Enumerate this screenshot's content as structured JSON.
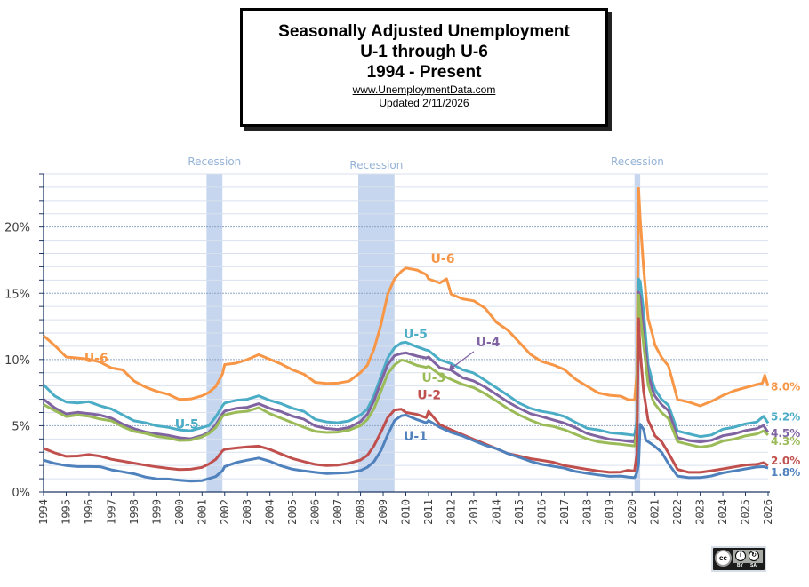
{
  "title_box": {
    "line1": "Seasonally Adjusted Unemployment",
    "line2": "U-1 through U-6",
    "line3": "1994 - Present",
    "website": "www.UnemploymentData.com",
    "updated": "Updated  2/11/2026"
  },
  "license_badge": {
    "icon": "cc-by-sa-icon",
    "cc_text": "cc",
    "by_text": "BY",
    "sa_text": "SA"
  },
  "chart_data": {
    "type": "line",
    "title": "Seasonally Adjusted Unemployment U-1 through U-6 1994 - Present",
    "xlabel": "",
    "ylabel": "",
    "xlim": [
      1994,
      2026
    ],
    "ylim": [
      0,
      24
    ],
    "x_ticks": [
      "1994",
      "1995",
      "1996",
      "1997",
      "1998",
      "1999",
      "2000",
      "2001",
      "2002",
      "2003",
      "2004",
      "2005",
      "2006",
      "2007",
      "2008",
      "2009",
      "2010",
      "2011",
      "2012",
      "2013",
      "2014",
      "2015",
      "2016",
      "2017",
      "2018",
      "2019",
      "2020",
      "2021",
      "2022",
      "2023",
      "2024",
      "2025",
      "2026"
    ],
    "y_ticks": [
      {
        "value": 0,
        "label": "0%"
      },
      {
        "value": 5,
        "label": "5%"
      },
      {
        "value": 10,
        "label": "10%"
      },
      {
        "value": 15,
        "label": "15%"
      },
      {
        "value": 20,
        "label": "20%"
      }
    ],
    "grid": true,
    "recessions": [
      {
        "label": "Recession",
        "start": 2001.2,
        "end": 2001.9
      },
      {
        "label": "Recession",
        "start": 2007.9,
        "end": 2009.5
      },
      {
        "label": "Recession",
        "start": 2020.1,
        "end": 2020.35
      }
    ],
    "series": [
      {
        "name": "U-6",
        "color": "#f79646",
        "end_label": "8.0%",
        "inline_labels": [
          {
            "text": "U-6",
            "x": 2011.1,
            "y": 17.3
          },
          {
            "text": "U-6",
            "x": 1995.8,
            "y": 9.8
          }
        ],
        "x": [
          1994,
          1994.5,
          1995,
          1995.5,
          1996,
          1996.5,
          1997,
          1997.5,
          1998,
          1998.5,
          1999,
          1999.5,
          2000,
          2000.5,
          2001,
          2001.3,
          2001.6,
          2001.9,
          2002,
          2002.5,
          2003,
          2003.5,
          2004,
          2004.5,
          2005,
          2005.5,
          2006,
          2006.5,
          2007,
          2007.5,
          2008,
          2008.3,
          2008.6,
          2008.9,
          2009.2,
          2009.5,
          2009.8,
          2010,
          2010.5,
          2010.9,
          2011,
          2011.5,
          2011.8,
          2012,
          2012.5,
          2013,
          2013.5,
          2014,
          2014.5,
          2015,
          2015.5,
          2016,
          2016.5,
          2017,
          2017.5,
          2018,
          2018.5,
          2019,
          2019.5,
          2019.8,
          2020.1,
          2020.2,
          2020.28,
          2020.35,
          2020.5,
          2020.7,
          2020.9,
          2021,
          2021.3,
          2021.6,
          2022,
          2022.5,
          2023,
          2023.5,
          2024,
          2024.5,
          2025,
          2025.5,
          2025.75,
          2025.85,
          2026
        ],
        "values": [
          11.8,
          11.0,
          10.1,
          10.0,
          9.9,
          9.7,
          9.3,
          9.2,
          8.4,
          8.0,
          7.7,
          7.5,
          7.1,
          7.1,
          7.3,
          7.5,
          7.9,
          8.8,
          9.5,
          9.6,
          9.9,
          10.3,
          10.0,
          9.7,
          9.3,
          9.0,
          8.4,
          8.3,
          8.3,
          8.4,
          9.0,
          9.5,
          10.7,
          12.5,
          14.8,
          16.0,
          16.6,
          16.9,
          16.8,
          16.5,
          16.2,
          15.9,
          16.2,
          15.0,
          14.6,
          14.4,
          13.8,
          12.7,
          12.1,
          11.2,
          10.3,
          9.8,
          9.6,
          9.3,
          8.6,
          8.1,
          7.6,
          7.4,
          7.3,
          7.0,
          6.9,
          8.8,
          22.8,
          20.5,
          16.8,
          13.0,
          11.8,
          11.1,
          10.2,
          9.6,
          7.1,
          6.9,
          6.6,
          6.9,
          7.3,
          7.6,
          7.8,
          8.0,
          8.1,
          8.7,
          8.0
        ]
      },
      {
        "name": "U-5",
        "color": "#4bacc6",
        "end_label": "5.2%",
        "inline_labels": [
          {
            "text": "U-5",
            "x": 2009.9,
            "y": 11.6
          },
          {
            "text": "U-5",
            "x": 1999.8,
            "y": 4.8
          }
        ],
        "x": [
          1994,
          1994.5,
          1995,
          1995.5,
          1996,
          1996.5,
          1997,
          1997.5,
          1998,
          1998.5,
          1999,
          1999.5,
          2000,
          2000.5,
          2001,
          2001.3,
          2001.6,
          2001.9,
          2002,
          2002.5,
          2003,
          2003.5,
          2004,
          2004.5,
          2005,
          2005.5,
          2006,
          2006.5,
          2007,
          2007.5,
          2008,
          2008.3,
          2008.6,
          2008.9,
          2009.2,
          2009.5,
          2009.8,
          2010,
          2010.5,
          2010.9,
          2011,
          2011.5,
          2012,
          2012.5,
          2013,
          2013.5,
          2014,
          2014.5,
          2015,
          2015.5,
          2016,
          2016.5,
          2017,
          2017.5,
          2018,
          2018.5,
          2019,
          2019.5,
          2019.8,
          2020.1,
          2020.2,
          2020.28,
          2020.35,
          2020.5,
          2020.7,
          2020.9,
          2021,
          2021.3,
          2021.6,
          2022,
          2022.5,
          2023,
          2023.5,
          2024,
          2024.5,
          2025,
          2025.5,
          2025.8,
          2026
        ],
        "values": [
          8.1,
          7.2,
          6.7,
          6.6,
          6.7,
          6.4,
          6.2,
          5.8,
          5.4,
          5.3,
          5.1,
          5.0,
          4.8,
          4.7,
          4.9,
          5.0,
          5.6,
          6.4,
          6.6,
          6.8,
          6.9,
          7.2,
          6.9,
          6.7,
          6.4,
          6.2,
          5.6,
          5.4,
          5.3,
          5.4,
          5.8,
          6.2,
          7.2,
          8.6,
          10.0,
          10.8,
          11.2,
          11.3,
          11.0,
          10.8,
          10.8,
          10.1,
          9.8,
          9.3,
          9.0,
          8.4,
          7.8,
          7.2,
          6.6,
          6.2,
          6.0,
          5.9,
          5.7,
          5.3,
          4.9,
          4.8,
          4.6,
          4.5,
          4.4,
          4.3,
          5.3,
          16.0,
          15.8,
          13.5,
          9.5,
          8.2,
          7.7,
          7.0,
          6.6,
          4.7,
          4.5,
          4.3,
          4.4,
          4.8,
          4.9,
          5.1,
          5.2,
          5.6,
          5.2
        ]
      },
      {
        "name": "U-4",
        "color": "#8064a2",
        "end_label": "4.5%",
        "inline_labels": [
          {
            "text": "U-4",
            "x": 2013.1,
            "y": 11.0
          }
        ],
        "x": [
          1994,
          1994.5,
          1995,
          1995.5,
          1996,
          1996.5,
          1997,
          1997.5,
          1998,
          1998.5,
          1999,
          1999.5,
          2000,
          2000.5,
          2001,
          2001.3,
          2001.6,
          2001.9,
          2002,
          2002.5,
          2003,
          2003.5,
          2004,
          2004.5,
          2005,
          2005.5,
          2006,
          2006.5,
          2007,
          2007.5,
          2008,
          2008.3,
          2008.6,
          2008.9,
          2009.2,
          2009.5,
          2009.8,
          2010,
          2010.5,
          2010.9,
          2011,
          2011.5,
          2012,
          2012.5,
          2013,
          2013.5,
          2014,
          2014.5,
          2015,
          2015.5,
          2016,
          2016.5,
          2017,
          2017.5,
          2018,
          2018.5,
          2019,
          2019.5,
          2019.8,
          2020.1,
          2020.2,
          2020.28,
          2020.35,
          2020.5,
          2020.7,
          2020.9,
          2021,
          2021.3,
          2021.6,
          2022,
          2022.5,
          2023,
          2023.5,
          2024,
          2024.5,
          2025,
          2025.5,
          2025.8,
          2026
        ],
        "values": [
          7.0,
          6.3,
          5.8,
          5.9,
          5.8,
          5.7,
          5.5,
          5.1,
          4.8,
          4.6,
          4.5,
          4.4,
          4.2,
          4.1,
          4.3,
          4.5,
          5.0,
          5.8,
          6.0,
          6.2,
          6.3,
          6.6,
          6.3,
          6.1,
          5.8,
          5.6,
          5.1,
          4.9,
          4.8,
          4.9,
          5.3,
          5.8,
          6.8,
          8.2,
          9.5,
          10.2,
          10.4,
          10.5,
          10.3,
          10.2,
          10.3,
          9.5,
          9.3,
          8.7,
          8.4,
          7.9,
          7.3,
          6.7,
          6.2,
          5.8,
          5.6,
          5.4,
          5.2,
          4.9,
          4.5,
          4.3,
          4.1,
          4.0,
          3.9,
          3.8,
          4.8,
          15.0,
          14.6,
          12.0,
          8.8,
          7.6,
          7.2,
          6.6,
          6.2,
          4.2,
          4.0,
          3.9,
          4.0,
          4.3,
          4.4,
          4.6,
          4.7,
          4.9,
          4.5
        ]
      },
      {
        "name": "U-3",
        "color": "#9bbb59",
        "end_label": "4.3%",
        "inline_labels": [
          {
            "text": "U-3",
            "x": 2010.7,
            "y": 8.3
          }
        ],
        "x": [
          1994,
          1994.5,
          1995,
          1995.5,
          1996,
          1996.5,
          1997,
          1997.5,
          1998,
          1998.5,
          1999,
          1999.5,
          2000,
          2000.5,
          2001,
          2001.3,
          2001.6,
          2001.9,
          2002,
          2002.5,
          2003,
          2003.5,
          2004,
          2004.5,
          2005,
          2005.5,
          2006,
          2006.5,
          2007,
          2007.5,
          2008,
          2008.3,
          2008.6,
          2008.9,
          2009.2,
          2009.5,
          2009.8,
          2010,
          2010.5,
          2010.9,
          2011,
          2011.5,
          2012,
          2012.5,
          2013,
          2013.5,
          2014,
          2014.5,
          2015,
          2015.5,
          2016,
          2016.5,
          2017,
          2017.5,
          2018,
          2018.5,
          2019,
          2019.5,
          2019.8,
          2020.1,
          2020.2,
          2020.28,
          2020.35,
          2020.5,
          2020.7,
          2020.9,
          2021,
          2021.3,
          2021.6,
          2022,
          2022.5,
          2023,
          2023.5,
          2024,
          2024.5,
          2025,
          2025.5,
          2025.8,
          2026
        ],
        "values": [
          6.6,
          6.1,
          5.6,
          5.7,
          5.6,
          5.4,
          5.3,
          4.9,
          4.6,
          4.5,
          4.3,
          4.2,
          4.0,
          4.0,
          4.2,
          4.4,
          4.8,
          5.6,
          5.7,
          5.9,
          6.0,
          6.3,
          5.9,
          5.6,
          5.3,
          5.0,
          4.7,
          4.6,
          4.6,
          4.7,
          5.0,
          5.4,
          6.2,
          7.5,
          8.8,
          9.5,
          9.9,
          9.9,
          9.6,
          9.5,
          9.6,
          9.0,
          8.6,
          8.2,
          7.9,
          7.4,
          6.8,
          6.2,
          5.7,
          5.3,
          5.0,
          4.9,
          4.7,
          4.4,
          4.1,
          3.9,
          3.8,
          3.7,
          3.6,
          3.5,
          4.4,
          14.8,
          13.3,
          11.0,
          8.0,
          6.9,
          6.6,
          6.0,
          5.6,
          3.9,
          3.7,
          3.5,
          3.6,
          3.9,
          4.0,
          4.2,
          4.3,
          4.5,
          4.3
        ]
      },
      {
        "name": "U-2",
        "color": "#c0504d",
        "end_label": "2.0%",
        "inline_labels": [
          {
            "text": "U-2",
            "x": 2010.5,
            "y": 7.0
          }
        ],
        "x": [
          1994,
          1994.5,
          1995,
          1995.5,
          1996,
          1996.5,
          1997,
          1997.5,
          1998,
          1998.5,
          1999,
          1999.5,
          2000,
          2000.5,
          2001,
          2001.3,
          2001.6,
          2001.9,
          2002,
          2002.5,
          2003,
          2003.5,
          2004,
          2004.5,
          2005,
          2005.5,
          2006,
          2006.5,
          2007,
          2007.5,
          2008,
          2008.3,
          2008.6,
          2008.9,
          2009.2,
          2009.5,
          2009.8,
          2010,
          2010.5,
          2010.9,
          2011,
          2011.5,
          2012,
          2012.5,
          2013,
          2013.5,
          2014,
          2014.5,
          2015,
          2015.5,
          2016,
          2016.5,
          2017,
          2017.5,
          2018,
          2018.5,
          2019,
          2019.5,
          2019.8,
          2020.1,
          2020.2,
          2020.28,
          2020.35,
          2020.5,
          2020.7,
          2020.9,
          2021,
          2021.3,
          2021.6,
          2022,
          2022.5,
          2023,
          2023.5,
          2024,
          2024.5,
          2025,
          2025.5,
          2025.8,
          2026
        ],
        "values": [
          3.3,
          2.9,
          2.6,
          2.6,
          2.7,
          2.6,
          2.4,
          2.3,
          2.2,
          2.1,
          2.0,
          1.9,
          1.8,
          1.8,
          1.9,
          2.1,
          2.4,
          3.0,
          3.1,
          3.2,
          3.3,
          3.4,
          3.2,
          2.9,
          2.6,
          2.4,
          2.2,
          2.1,
          2.1,
          2.2,
          2.4,
          2.7,
          3.4,
          4.4,
          5.5,
          6.1,
          6.2,
          6.0,
          5.9,
          5.7,
          6.2,
          5.2,
          4.8,
          4.4,
          4.0,
          3.6,
          3.2,
          2.8,
          2.6,
          2.4,
          2.3,
          2.2,
          2.0,
          1.9,
          1.8,
          1.7,
          1.6,
          1.6,
          1.7,
          1.6,
          2.8,
          13.0,
          10.5,
          7.5,
          5.3,
          4.6,
          4.2,
          3.8,
          3.0,
          1.8,
          1.6,
          1.6,
          1.7,
          1.8,
          1.9,
          2.0,
          2.0,
          2.1,
          2.0
        ]
      },
      {
        "name": "U-1",
        "color": "#4f81bd",
        "end_label": "1.8%",
        "inline_labels": [
          {
            "text": "U-1",
            "x": 2009.9,
            "y": 3.9
          }
        ],
        "x": [
          1994,
          1994.5,
          1995,
          1995.5,
          1996,
          1996.5,
          1997,
          1997.5,
          1998,
          1998.5,
          1999,
          1999.5,
          2000,
          2000.5,
          2001,
          2001.3,
          2001.6,
          2001.9,
          2002,
          2002.5,
          2003,
          2003.5,
          2004,
          2004.5,
          2005,
          2005.5,
          2006,
          2006.5,
          2007,
          2007.5,
          2008,
          2008.3,
          2008.6,
          2008.9,
          2009.2,
          2009.5,
          2009.8,
          2010,
          2010.5,
          2010.9,
          2011,
          2011.5,
          2012,
          2012.5,
          2013,
          2013.5,
          2014,
          2014.5,
          2015,
          2015.5,
          2016,
          2016.5,
          2017,
          2017.5,
          2018,
          2018.5,
          2019,
          2019.5,
          2019.8,
          2020.1,
          2020.2,
          2020.28,
          2020.35,
          2020.5,
          2020.6,
          2020.8,
          2021,
          2021.3,
          2021.6,
          2022,
          2022.5,
          2023,
          2023.5,
          2024,
          2024.5,
          2025,
          2025.5,
          2025.8,
          2026
        ],
        "values": [
          2.4,
          2.1,
          1.9,
          1.8,
          1.8,
          1.8,
          1.6,
          1.5,
          1.4,
          1.2,
          1.1,
          1.1,
          1.0,
          0.9,
          0.9,
          1.0,
          1.1,
          1.5,
          1.8,
          2.1,
          2.3,
          2.5,
          2.3,
          2.0,
          1.8,
          1.7,
          1.6,
          1.5,
          1.5,
          1.5,
          1.6,
          1.8,
          2.2,
          3.0,
          4.2,
          5.3,
          5.7,
          5.8,
          5.5,
          5.3,
          5.5,
          5.0,
          4.6,
          4.3,
          3.9,
          3.5,
          3.2,
          2.8,
          2.5,
          2.2,
          2.0,
          1.9,
          1.8,
          1.6,
          1.5,
          1.4,
          1.3,
          1.3,
          1.2,
          1.1,
          1.4,
          2.0,
          5.0,
          4.6,
          3.8,
          3.6,
          3.4,
          3.0,
          2.2,
          1.3,
          1.2,
          1.2,
          1.3,
          1.5,
          1.6,
          1.7,
          1.8,
          1.8,
          1.8
        ]
      }
    ]
  }
}
